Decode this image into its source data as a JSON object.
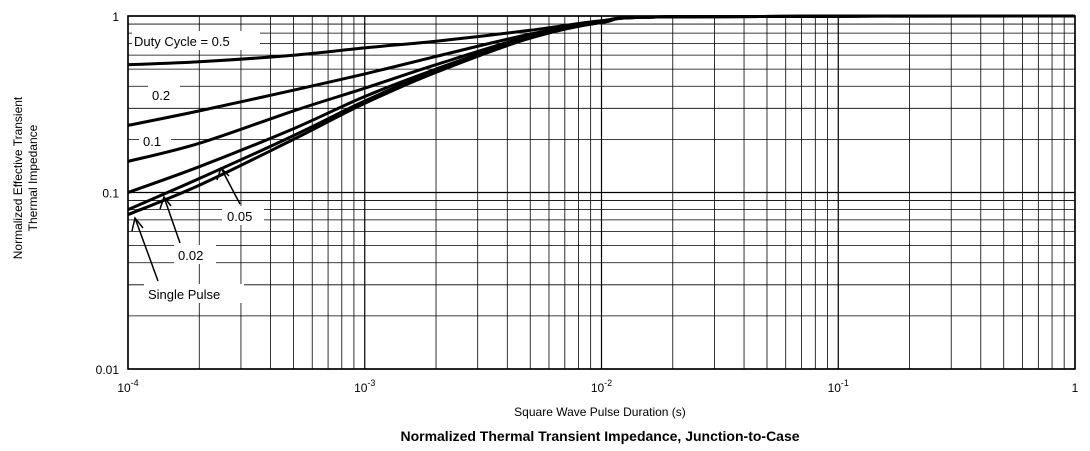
{
  "chart_data": {
    "type": "line",
    "x_scale": "log",
    "y_scale": "log",
    "xlim": [
      0.0001,
      1
    ],
    "ylim": [
      0.01,
      1
    ],
    "grid": true,
    "xlabel": "Square Wave Pulse Duration (s)",
    "ylabel_line1": "Normalized Effective Transient",
    "ylabel_line2": "Thermal Impedance",
    "caption": "Normalized Thermal Transient Impedance, Junction-to-Case",
    "x_ticks": [
      {
        "value": 0.0001,
        "base": "10",
        "exp": "-4"
      },
      {
        "value": 0.001,
        "base": "10",
        "exp": "-3"
      },
      {
        "value": 0.01,
        "base": "10",
        "exp": "-2"
      },
      {
        "value": 0.1,
        "base": "10",
        "exp": "-1"
      },
      {
        "value": 1,
        "base": "1",
        "exp": ""
      }
    ],
    "y_ticks": [
      {
        "value": 1,
        "label": "1"
      },
      {
        "value": 0.1,
        "label": "0.1"
      },
      {
        "value": 0.01,
        "label": "0.01"
      }
    ],
    "series": [
      {
        "name": "Duty Cycle = 0.5",
        "x": [
          0.0001,
          0.0002,
          0.0005,
          0.001,
          0.002,
          0.005,
          0.01,
          0.02,
          1
        ],
        "y": [
          0.53,
          0.55,
          0.6,
          0.66,
          0.72,
          0.83,
          0.94,
          0.99,
          1.0
        ]
      },
      {
        "name": "0.2",
        "x": [
          0.0001,
          0.0002,
          0.0005,
          0.001,
          0.002,
          0.005,
          0.01,
          0.02,
          1
        ],
        "y": [
          0.24,
          0.29,
          0.38,
          0.47,
          0.59,
          0.79,
          0.93,
          0.99,
          1.0
        ]
      },
      {
        "name": "0.1",
        "x": [
          0.0001,
          0.0002,
          0.0005,
          0.001,
          0.002,
          0.005,
          0.01,
          0.02,
          1
        ],
        "y": [
          0.15,
          0.19,
          0.29,
          0.39,
          0.53,
          0.77,
          0.92,
          0.99,
          1.0
        ]
      },
      {
        "name": "0.05",
        "x": [
          0.0001,
          0.0002,
          0.0005,
          0.001,
          0.002,
          0.005,
          0.01,
          0.02,
          1
        ],
        "y": [
          0.1,
          0.14,
          0.23,
          0.35,
          0.5,
          0.76,
          0.92,
          0.99,
          1.0
        ]
      },
      {
        "name": "0.02",
        "x": [
          0.0001,
          0.0002,
          0.0005,
          0.001,
          0.002,
          0.005,
          0.01,
          0.02,
          1
        ],
        "y": [
          0.08,
          0.12,
          0.21,
          0.33,
          0.49,
          0.75,
          0.92,
          0.99,
          1.0
        ]
      },
      {
        "name": "Single Pulse",
        "x": [
          0.0001,
          0.0002,
          0.0005,
          0.001,
          0.002,
          0.005,
          0.01,
          0.02,
          1
        ],
        "y": [
          0.075,
          0.11,
          0.2,
          0.32,
          0.48,
          0.75,
          0.92,
          0.99,
          1.0
        ]
      }
    ]
  }
}
